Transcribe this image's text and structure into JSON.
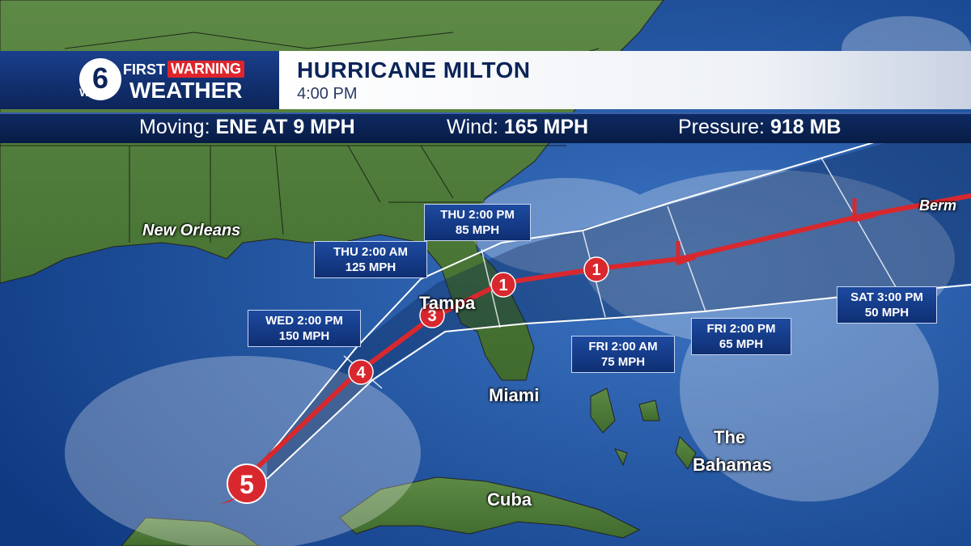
{
  "header": {
    "station_first": "FIRST",
    "station_warning": "WARNING",
    "station_call": "WDSU",
    "station_weather": "WEATHER",
    "station_number": "6",
    "storm_name": "HURRICANE MILTON",
    "time": "4:00 PM"
  },
  "stats": {
    "moving_label": "Moving:",
    "moving_value": "ENE AT 9 MPH",
    "wind_label": "Wind:",
    "wind_value": "165 MPH",
    "pressure_label": "Pressure:",
    "pressure_value": "918 MB"
  },
  "forecast_points": [
    {
      "time": "WED 2:00 PM",
      "wind": "150 MPH"
    },
    {
      "time": "THU 2:00 AM",
      "wind": "125 MPH"
    },
    {
      "time": "THU 2:00 PM",
      "wind": "85 MPH"
    },
    {
      "time": "FRI 2:00 AM",
      "wind": "75 MPH"
    },
    {
      "time": "FRI 2:00 PM",
      "wind": "65 MPH"
    },
    {
      "time": "SAT 3:00 PM",
      "wind": "50 MPH"
    }
  ],
  "category_markers": [
    "5",
    "4",
    "3",
    "1",
    "1"
  ],
  "cities": {
    "new_orleans": "New Orleans",
    "tampa": "Tampa",
    "miami": "Miami",
    "bahamas_1": "The",
    "bahamas_2": "Bahamas",
    "cuba": "Cuba",
    "bermuda": "Berm"
  },
  "colors": {
    "ocean": "#1a4f9c",
    "land": "#4f7a3c",
    "track": "#d8282e",
    "cone_edge": "#ffffff",
    "header_blue": "#0c2459",
    "warning_red": "#e0242b"
  }
}
